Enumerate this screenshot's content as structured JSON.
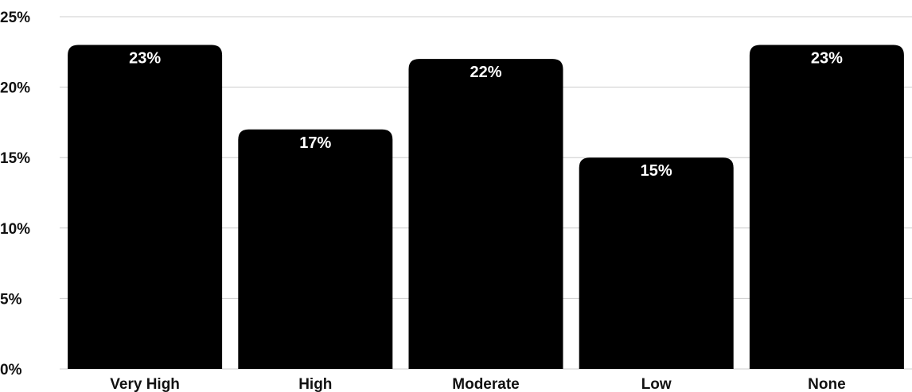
{
  "chart_data": {
    "type": "bar",
    "categories": [
      "Very High",
      "High",
      "Moderate",
      "Low",
      "None"
    ],
    "values": [
      23,
      17,
      22,
      15,
      23
    ],
    "value_labels": [
      "23%",
      "17%",
      "22%",
      "15%",
      "23%"
    ],
    "y_ticks": [
      "0%",
      "5%",
      "10%",
      "15%",
      "20%",
      "25%"
    ],
    "y_tick_values": [
      0,
      5,
      10,
      15,
      20,
      25
    ],
    "ylim": [
      0,
      25
    ],
    "title": "",
    "xlabel": "",
    "ylabel": "",
    "grid": true,
    "legend": "none",
    "colors": {
      "bar": "#000000",
      "grid": "#cccccc",
      "axis_text": "#111111",
      "bar_label": "#ffffff"
    }
  }
}
